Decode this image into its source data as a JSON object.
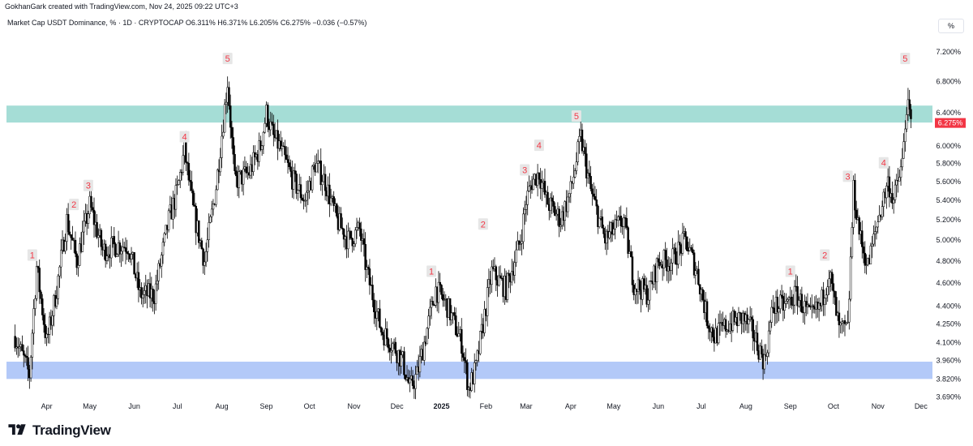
{
  "header": {
    "attribution": "GokhanGark created with TradingView.com, Nov 24, 2025 09:22 UTC+3"
  },
  "legend": {
    "text": "Market Cap USDT Dominance, % · 1D · CRYPTOCAP  O6.311%  H6.371%  L6.205%  C6.275%  −0.036 (−0.57%)"
  },
  "scale_button": "%",
  "footer": {
    "brand": "TradingView"
  },
  "colors": {
    "resistance_zone": "#a5ddd6",
    "support_zone": "#b3c9f8",
    "candles": "#000000",
    "wave_labels": "#f23645",
    "wave_label_bg": "#e6e6e6",
    "price_tag": "#f23645"
  },
  "chart_data": {
    "type": "candlestick",
    "symbol": "Market Cap USDT Dominance, %",
    "interval": "1D",
    "exchange": "CRYPTOCAP",
    "ohlc_last": {
      "open": 6.311,
      "high": 6.371,
      "low": 6.205,
      "close": 6.275,
      "change": -0.036,
      "change_pct": -0.57
    },
    "last_price_label": "6.275%",
    "y_scale": "log",
    "y_range": [
      3.64,
      7.55
    ],
    "y_ticks": [
      "3.690%",
      "3.820%",
      "3.960%",
      "4.100%",
      "4.250%",
      "4.400%",
      "4.600%",
      "4.800%",
      "5.000%",
      "5.200%",
      "5.400%",
      "5.600%",
      "5.800%",
      "6.000%",
      "6.400%",
      "6.800%",
      "7.200%"
    ],
    "x_labels": [
      "Apr",
      "May",
      "Jun",
      "Jul",
      "Aug",
      "Sep",
      "Oct",
      "Nov",
      "Dec",
      "2025",
      "Feb",
      "Mar",
      "Apr",
      "May",
      "Jun",
      "Jul",
      "Aug",
      "Sep",
      "Oct",
      "Nov",
      "Dec"
    ],
    "zones": [
      {
        "name": "resistance",
        "from": 6.28,
        "to": 6.49
      },
      {
        "name": "support",
        "from": 3.82,
        "to": 3.95
      }
    ],
    "series": [
      {
        "x": [
          "2024-03-10",
          "2024-03-20",
          "2024-03-25",
          "2024-04-01",
          "2024-04-08",
          "2024-04-15",
          "2024-04-22",
          "2024-05-01",
          "2024-05-10",
          "2024-05-20",
          "2024-05-28",
          "2024-06-05",
          "2024-06-15",
          "2024-06-25",
          "2024-07-01",
          "2024-07-06",
          "2024-07-12",
          "2024-07-20",
          "2024-07-28",
          "2024-08-05",
          "2024-08-10",
          "2024-08-20",
          "2024-08-28",
          "2024-09-01",
          "2024-09-06",
          "2024-09-10",
          "2024-09-20",
          "2024-09-28",
          "2024-10-05",
          "2024-10-12",
          "2024-10-20",
          "2024-10-28",
          "2024-11-05",
          "2024-11-10",
          "2024-11-20",
          "2024-11-30",
          "2024-12-05",
          "2024-12-10",
          "2024-12-15",
          "2024-12-20",
          "2024-12-28",
          "2025-01-05",
          "2025-01-15",
          "2025-01-20",
          "2025-01-25",
          "2025-02-01",
          "2025-02-05",
          "2025-02-15",
          "2025-02-25",
          "2025-03-01",
          "2025-03-05",
          "2025-03-10",
          "2025-03-15",
          "2025-03-25",
          "2025-04-01",
          "2025-04-08",
          "2025-04-15",
          "2025-04-25",
          "2025-05-01",
          "2025-05-08",
          "2025-05-15",
          "2025-05-25",
          "2025-06-01",
          "2025-06-10",
          "2025-06-20",
          "2025-06-28",
          "2025-07-05",
          "2025-07-10",
          "2025-07-20",
          "2025-07-30",
          "2025-08-05",
          "2025-08-14",
          "2025-08-20",
          "2025-08-28",
          "2025-09-05",
          "2025-09-15",
          "2025-09-22",
          "2025-09-28",
          "2025-10-05",
          "2025-10-11",
          "2025-10-15",
          "2025-10-20",
          "2025-10-25",
          "2025-11-01",
          "2025-11-08",
          "2025-11-12",
          "2025-11-18",
          "2025-11-21",
          "2025-11-24"
        ],
        "close": [
          4.15,
          3.85,
          4.75,
          4.1,
          4.55,
          5.2,
          4.8,
          5.35,
          4.9,
          4.95,
          4.95,
          4.5,
          4.5,
          5.2,
          5.5,
          5.95,
          5.3,
          4.8,
          5.55,
          6.8,
          5.6,
          5.7,
          6.0,
          6.4,
          6.1,
          6.0,
          5.6,
          5.4,
          5.8,
          5.6,
          5.2,
          5.0,
          5.1,
          4.7,
          4.2,
          4.05,
          3.95,
          3.75,
          3.85,
          4.1,
          4.55,
          4.4,
          4.1,
          3.75,
          3.9,
          4.4,
          4.7,
          4.55,
          5.0,
          5.4,
          5.6,
          5.7,
          5.4,
          5.2,
          5.5,
          6.1,
          5.5,
          5.0,
          5.1,
          5.2,
          4.6,
          4.5,
          4.8,
          4.8,
          5.0,
          4.7,
          4.3,
          4.15,
          4.25,
          4.3,
          4.2,
          3.95,
          4.4,
          4.4,
          4.5,
          4.3,
          4.4,
          4.7,
          4.2,
          4.2,
          5.5,
          5.0,
          4.75,
          5.2,
          5.6,
          5.4,
          5.8,
          6.5,
          6.275
        ]
      }
    ],
    "wave_labels": [
      {
        "label": "1",
        "date": "2024-03-22",
        "value": 4.85
      },
      {
        "label": "2",
        "date": "2024-04-20",
        "value": 5.35
      },
      {
        "label": "3",
        "date": "2024-04-30",
        "value": 5.55
      },
      {
        "label": "4",
        "date": "2024-07-06",
        "value": 6.1
      },
      {
        "label": "5",
        "date": "2024-08-05",
        "value": 7.1
      },
      {
        "label": "1",
        "date": "2024-12-25",
        "value": 4.7
      },
      {
        "label": "2",
        "date": "2025-01-30",
        "value": 5.15
      },
      {
        "label": "3",
        "date": "2025-02-28",
        "value": 5.72
      },
      {
        "label": "4",
        "date": "2025-03-10",
        "value": 6.0
      },
      {
        "label": "5",
        "date": "2025-04-05",
        "value": 6.35
      },
      {
        "label": "1",
        "date": "2025-09-01",
        "value": 4.7
      },
      {
        "label": "2",
        "date": "2025-09-25",
        "value": 4.85
      },
      {
        "label": "3",
        "date": "2025-10-11",
        "value": 5.65
      },
      {
        "label": "4",
        "date": "2025-11-05",
        "value": 5.8
      },
      {
        "label": "5",
        "date": "2025-11-20",
        "value": 7.1
      }
    ]
  }
}
